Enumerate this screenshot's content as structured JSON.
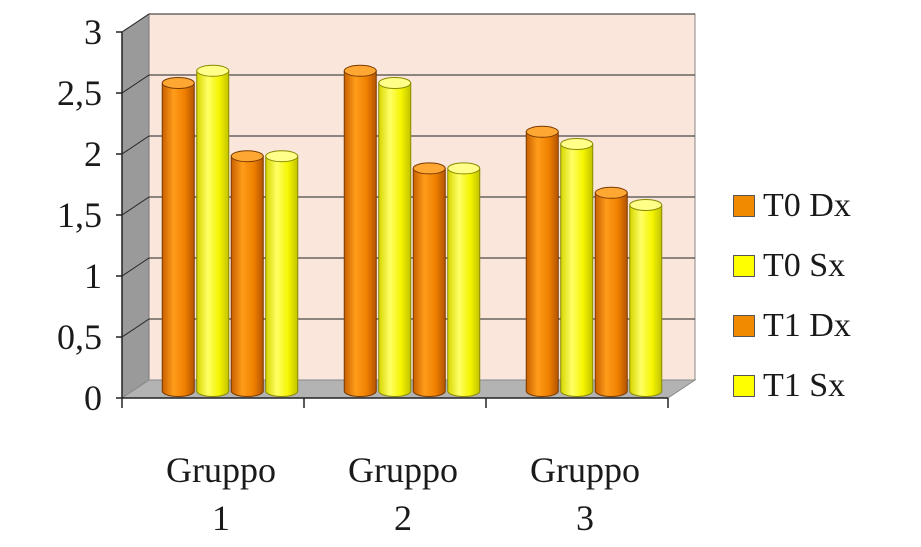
{
  "chart_data": {
    "type": "bar",
    "categories": [
      [
        "Gruppo",
        "1"
      ],
      [
        "Gruppo",
        "2"
      ],
      [
        "Gruppo",
        "3"
      ]
    ],
    "series": [
      {
        "name": "T0 Dx",
        "color": "#f28a00",
        "values": [
          2.5,
          2.6,
          2.1
        ]
      },
      {
        "name": "T0 Sx",
        "color": "#ffff00",
        "values": [
          2.6,
          2.5,
          2.0
        ]
      },
      {
        "name": "T1 Dx",
        "color": "#f28a00",
        "values": [
          1.9,
          1.8,
          1.6
        ]
      },
      {
        "name": "T1 Sx",
        "color": "#ffff00",
        "values": [
          1.9,
          1.8,
          1.5
        ]
      }
    ],
    "y_ticks": [
      "0",
      "0,5",
      "1",
      "1,5",
      "2",
      "2,5",
      "3"
    ],
    "ylim": [
      0,
      3
    ],
    "grid": true,
    "legend_position": "right",
    "style": "3d-cylinder",
    "colors": {
      "wall": "#fbe6dc",
      "side_wall": "#9a9a9a",
      "floor": "#b3b3b3"
    }
  }
}
